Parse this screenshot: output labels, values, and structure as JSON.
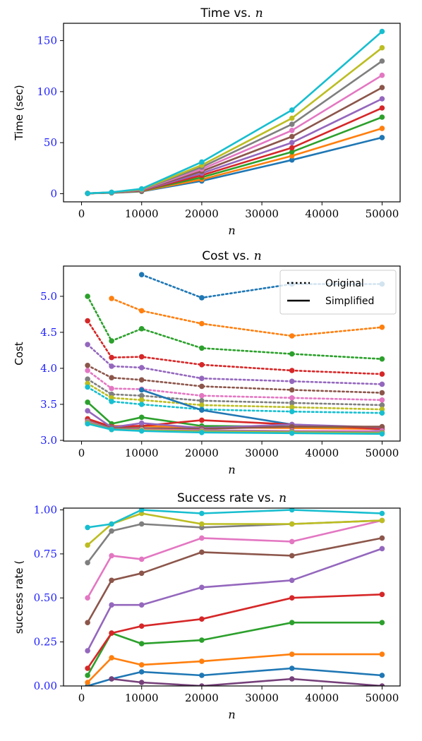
{
  "chart_data": [
    {
      "type": "line",
      "title": "Time vs.",
      "title_var": "n",
      "xlabel": "n",
      "ylabel": "Time (sec)",
      "xlim": [
        -3000,
        53000
      ],
      "ylim": [
        -8,
        167
      ],
      "xticks": [
        0,
        10000,
        20000,
        30000,
        40000,
        50000
      ],
      "yticks": [
        0,
        50,
        100,
        150
      ],
      "ytick_color": "#1f1fff",
      "legend": null,
      "x": [
        1000,
        5000,
        10000,
        20000,
        35000,
        50000
      ],
      "series": [
        {
          "color": "#1f77b4",
          "style": "solid",
          "values": [
            0.3,
            0.8,
            2.2,
            12.5,
            33,
            55
          ]
        },
        {
          "color": "#ff7f0e",
          "style": "solid",
          "values": [
            0.3,
            0.9,
            2.5,
            14,
            37,
            64
          ]
        },
        {
          "color": "#2ca02c",
          "style": "solid",
          "values": [
            0.3,
            1.0,
            2.8,
            16,
            41,
            75
          ]
        },
        {
          "color": "#d62728",
          "style": "solid",
          "values": [
            0.3,
            1.0,
            3.0,
            18,
            45,
            84
          ]
        },
        {
          "color": "#9467bd",
          "style": "solid",
          "values": [
            0.3,
            1.1,
            3.2,
            20,
            50,
            93
          ]
        },
        {
          "color": "#8c564b",
          "style": "solid",
          "values": [
            0.3,
            1.1,
            3.4,
            22,
            56,
            104
          ]
        },
        {
          "color": "#e377c2",
          "style": "solid",
          "values": [
            0.3,
            1.2,
            3.7,
            24,
            62,
            116
          ]
        },
        {
          "color": "#7f7f7f",
          "style": "solid",
          "values": [
            0.3,
            1.2,
            4.0,
            26,
            68,
            130
          ]
        },
        {
          "color": "#bcbd22",
          "style": "solid",
          "values": [
            0.3,
            1.3,
            4.4,
            28,
            74,
            143
          ]
        },
        {
          "color": "#17becf",
          "style": "solid",
          "values": [
            0.3,
            1.4,
            4.8,
            31,
            82,
            159
          ]
        }
      ]
    },
    {
      "type": "line",
      "title": "Cost vs.",
      "title_var": "n",
      "xlabel": "n",
      "ylabel": "Cost",
      "xlim": [
        -3000,
        53000
      ],
      "ylim": [
        2.99,
        5.42
      ],
      "xticks": [
        0,
        10000,
        20000,
        30000,
        40000,
        50000
      ],
      "yticks": [
        3.0,
        3.5,
        4.0,
        4.5,
        5.0
      ],
      "ytick_labels": [
        "3.0",
        "3.5",
        "4.0",
        "4.5",
        "5.0"
      ],
      "ytick_color": "#1f1fff",
      "legend": {
        "position": "top-right",
        "entries": [
          {
            "label": "Original",
            "style": "dotted"
          },
          {
            "label": "Simplified",
            "style": "solid"
          }
        ]
      },
      "series": [
        {
          "color": "#1f77b4",
          "style": "dotted",
          "x": [
            10000,
            20000,
            35000,
            50000
          ],
          "values": [
            5.3,
            4.98,
            5.17,
            5.17
          ]
        },
        {
          "color": "#ff7f0e",
          "style": "dotted",
          "x": [
            5000,
            10000,
            20000,
            35000,
            50000
          ],
          "values": [
            4.97,
            4.8,
            4.62,
            4.45,
            4.57
          ]
        },
        {
          "color": "#2ca02c",
          "style": "dotted",
          "x": [
            1000,
            5000,
            10000,
            20000,
            35000,
            50000
          ],
          "values": [
            5.0,
            4.38,
            4.55,
            4.28,
            4.2,
            4.13
          ]
        },
        {
          "color": "#d62728",
          "style": "dotted",
          "x": [
            1000,
            5000,
            10000,
            20000,
            35000,
            50000
          ],
          "values": [
            4.66,
            4.15,
            4.16,
            4.05,
            3.97,
            3.92
          ]
        },
        {
          "color": "#9467bd",
          "style": "dotted",
          "x": [
            1000,
            5000,
            10000,
            20000,
            35000,
            50000
          ],
          "values": [
            4.33,
            4.03,
            4.01,
            3.86,
            3.82,
            3.78
          ]
        },
        {
          "color": "#8c564b",
          "style": "dotted",
          "x": [
            1000,
            5000,
            10000,
            20000,
            35000,
            50000
          ],
          "values": [
            4.04,
            3.87,
            3.84,
            3.75,
            3.7,
            3.66
          ]
        },
        {
          "color": "#e377c2",
          "style": "dotted",
          "x": [
            1000,
            5000,
            10000,
            20000,
            35000,
            50000
          ],
          "values": [
            3.97,
            3.72,
            3.71,
            3.62,
            3.59,
            3.56
          ]
        },
        {
          "color": "#7f7f7f",
          "style": "dotted",
          "x": [
            1000,
            5000,
            10000,
            20000,
            35000,
            50000
          ],
          "values": [
            3.85,
            3.64,
            3.62,
            3.55,
            3.52,
            3.49
          ]
        },
        {
          "color": "#bcbd22",
          "style": "dotted",
          "x": [
            1000,
            5000,
            10000,
            20000,
            35000,
            50000
          ],
          "values": [
            3.79,
            3.59,
            3.56,
            3.49,
            3.46,
            3.43
          ]
        },
        {
          "color": "#17becf",
          "style": "dotted",
          "x": [
            1000,
            5000,
            10000,
            20000,
            35000,
            50000
          ],
          "values": [
            3.74,
            3.54,
            3.5,
            3.43,
            3.4,
            3.38
          ]
        },
        {
          "color": "#1f77b4",
          "style": "solid",
          "x": [
            10000,
            20000,
            35000,
            50000
          ],
          "values": [
            3.7,
            3.42,
            3.22,
            3.15
          ]
        },
        {
          "color": "#ff7f0e",
          "style": "solid",
          "x": [
            5000,
            10000,
            20000,
            35000,
            50000
          ],
          "values": [
            3.2,
            3.2,
            3.18,
            3.17,
            3.16
          ]
        },
        {
          "color": "#2ca02c",
          "style": "solid",
          "x": [
            1000,
            5000,
            10000,
            20000,
            35000,
            50000
          ],
          "values": [
            3.53,
            3.23,
            3.32,
            3.2,
            3.19,
            3.18
          ]
        },
        {
          "color": "#d62728",
          "style": "solid",
          "x": [
            1000,
            5000,
            10000,
            20000,
            35000,
            50000
          ],
          "values": [
            3.3,
            3.19,
            3.2,
            3.28,
            3.22,
            3.16
          ]
        },
        {
          "color": "#9467bd",
          "style": "solid",
          "x": [
            1000,
            5000,
            10000,
            20000,
            35000,
            50000
          ],
          "values": [
            3.41,
            3.18,
            3.24,
            3.17,
            3.22,
            3.18
          ]
        },
        {
          "color": "#8c564b",
          "style": "solid",
          "x": [
            1000,
            5000,
            10000,
            20000,
            35000,
            50000
          ],
          "values": [
            3.27,
            3.17,
            3.17,
            3.16,
            3.19,
            3.19
          ]
        },
        {
          "color": "#e377c2",
          "style": "solid",
          "x": [
            1000,
            5000,
            10000,
            20000,
            35000,
            50000
          ],
          "values": [
            3.26,
            3.16,
            3.15,
            3.14,
            3.13,
            3.13
          ]
        },
        {
          "color": "#7f7f7f",
          "style": "solid",
          "x": [
            1000,
            5000,
            10000,
            20000,
            35000,
            50000
          ],
          "values": [
            3.25,
            3.16,
            3.14,
            3.13,
            3.12,
            3.11
          ]
        },
        {
          "color": "#bcbd22",
          "style": "solid",
          "x": [
            1000,
            5000,
            10000,
            20000,
            35000,
            50000
          ],
          "values": [
            3.24,
            3.15,
            3.14,
            3.12,
            3.11,
            3.1
          ]
        },
        {
          "color": "#17becf",
          "style": "solid",
          "x": [
            1000,
            5000,
            10000,
            20000,
            35000,
            50000
          ],
          "values": [
            3.23,
            3.15,
            3.13,
            3.11,
            3.1,
            3.09
          ]
        }
      ]
    },
    {
      "type": "line",
      "title": "Success rate vs.",
      "title_var": "n",
      "xlabel": "n",
      "ylabel": "success rate (",
      "xlim": [
        -3000,
        53000
      ],
      "ylim": [
        0.0,
        1.01
      ],
      "xticks": [
        0,
        10000,
        20000,
        30000,
        40000,
        50000
      ],
      "yticks": [
        0.0,
        0.25,
        0.5,
        0.75,
        1.0
      ],
      "ytick_labels": [
        "0.00",
        "0.25",
        "0.50",
        "0.75",
        "1.00"
      ],
      "ytick_color": "#1f1fff",
      "legend": null,
      "x": [
        1000,
        5000,
        10000,
        20000,
        35000,
        50000
      ],
      "series": [
        {
          "color": "#1f77b4",
          "style": "solid",
          "values": [
            0.0,
            0.04,
            0.08,
            0.06,
            0.1,
            0.06
          ]
        },
        {
          "color": "#ff7f0e",
          "style": "solid",
          "values": [
            0.02,
            0.16,
            0.12,
            0.14,
            0.18,
            0.18
          ]
        },
        {
          "color": "#2ca02c",
          "style": "solid",
          "values": [
            0.06,
            0.3,
            0.24,
            0.26,
            0.36,
            0.36
          ]
        },
        {
          "color": "#d62728",
          "style": "solid",
          "values": [
            0.1,
            0.3,
            0.34,
            0.38,
            0.5,
            0.52
          ]
        },
        {
          "color": "#9467bd",
          "style": "solid",
          "values": [
            0.2,
            0.46,
            0.46,
            0.56,
            0.6,
            0.78
          ]
        },
        {
          "color": "#8c564b",
          "style": "solid",
          "values": [
            0.36,
            0.6,
            0.64,
            0.76,
            0.74,
            0.84
          ]
        },
        {
          "color": "#e377c2",
          "style": "solid",
          "values": [
            0.5,
            0.74,
            0.72,
            0.84,
            0.82,
            0.94
          ]
        },
        {
          "color": "#7f7f7f",
          "style": "solid",
          "values": [
            0.7,
            0.88,
            0.92,
            0.9,
            0.92,
            0.94
          ]
        },
        {
          "color": "#bcbd22",
          "style": "solid",
          "values": [
            0.8,
            0.92,
            0.98,
            0.92,
            0.92,
            0.94
          ]
        },
        {
          "color": "#17becf",
          "style": "solid",
          "values": [
            0.9,
            0.92,
            1.0,
            0.98,
            1.0,
            0.98
          ]
        },
        {
          "color": "#76417a",
          "style": "solid",
          "values": [
            null,
            0.04,
            0.02,
            0.0,
            0.04,
            0.0
          ]
        }
      ]
    }
  ]
}
